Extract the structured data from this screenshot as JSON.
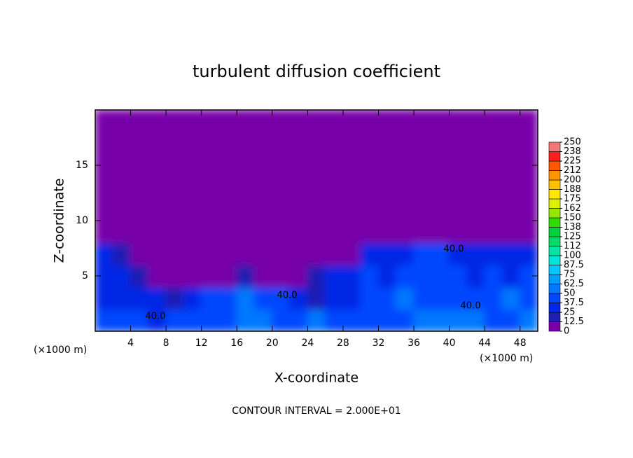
{
  "chart_data": {
    "type": "contour",
    "title": "turbulent diffusion coefficient",
    "x_label": "X-coordinate",
    "y_label": "Z-coordinate",
    "x_unit": "(×1000 m)",
    "footer": "CONTOUR INTERVAL = 2.000E+01",
    "annotations": [
      "40.0",
      "40.0",
      "40.0",
      "40.0"
    ],
    "xlim": [
      0,
      50
    ],
    "ylim": [
      0,
      20
    ],
    "xticks": [
      4,
      8,
      12,
      16,
      20,
      24,
      28,
      32,
      36,
      40,
      44,
      48
    ],
    "yticks": [
      5,
      10,
      15
    ],
    "levels": [
      0,
      12.5,
      25,
      37.5,
      50,
      62.5,
      75,
      87.5,
      100,
      {
        "value": 112.5,
        "label": "112"
      },
      125,
      {
        "value": 137.5,
        "label": "138"
      },
      150,
      {
        "value": 162.5,
        "label": "162"
      },
      175,
      {
        "value": 187.5,
        "label": "188"
      },
      200,
      {
        "value": 212.5,
        "label": "212"
      },
      225,
      {
        "value": 237.5,
        "label": "238"
      },
      250
    ],
    "colors": [
      "#7800a8",
      "#1e1eb4",
      "#0028e6",
      "#0046ff",
      "#0078ff",
      "#00a0ff",
      "#00c8ff",
      "#00e6dc",
      "#00e6a0",
      "#00dc64",
      "#00d23c",
      "#32dc00",
      "#96e600",
      "#dcf000",
      "#ffe600",
      "#ffbe00",
      "#ff9600",
      "#ff5a00",
      "#ff1e1e",
      "#f07878"
    ],
    "z": [
      [
        45,
        40,
        40,
        35,
        40,
        45,
        45,
        40,
        50,
        55,
        45,
        40,
        50,
        45,
        40,
        45,
        40,
        45,
        50,
        55,
        50,
        50,
        45,
        45,
        50
      ],
      [
        35,
        30,
        25,
        30,
        20,
        30,
        40,
        45,
        50,
        45,
        40,
        30,
        20,
        30,
        35,
        40,
        45,
        50,
        45,
        40,
        45,
        40,
        45,
        50,
        45
      ],
      [
        30,
        25,
        20,
        10,
        5,
        5,
        5,
        10,
        15,
        5,
        5,
        5,
        20,
        30,
        35,
        40,
        35,
        40,
        45,
        45,
        40,
        35,
        40,
        35,
        40
      ],
      [
        25,
        20,
        10,
        5,
        0,
        0,
        0,
        0,
        0,
        0,
        0,
        0,
        0,
        0,
        10,
        25,
        30,
        35,
        40,
        40,
        35,
        35,
        30,
        35,
        35
      ],
      [
        0,
        0,
        0,
        0,
        0,
        0,
        0,
        0,
        0,
        0,
        0,
        0,
        0,
        0,
        0,
        0,
        0,
        0,
        10,
        5,
        0,
        0,
        0,
        0,
        0
      ],
      [
        0,
        0,
        0,
        0,
        0,
        0,
        0,
        0,
        0,
        0,
        0,
        0,
        0,
        0,
        0,
        0,
        0,
        0,
        0,
        0,
        0,
        0,
        0,
        0,
        0
      ],
      [
        0,
        0,
        0,
        0,
        0,
        0,
        0,
        0,
        0,
        0,
        0,
        0,
        0,
        0,
        0,
        0,
        0,
        0,
        0,
        0,
        0,
        0,
        0,
        0,
        0
      ],
      [
        0,
        0,
        0,
        0,
        0,
        0,
        0,
        0,
        0,
        0,
        0,
        0,
        0,
        0,
        0,
        0,
        0,
        0,
        0,
        0,
        0,
        0,
        0,
        0,
        0
      ],
      [
        0,
        0,
        0,
        0,
        0,
        0,
        0,
        0,
        0,
        0,
        0,
        0,
        0,
        0,
        0,
        0,
        0,
        0,
        0,
        0,
        0,
        0,
        0,
        0,
        0
      ],
      [
        0,
        0,
        0,
        0,
        0,
        0,
        0,
        0,
        0,
        0,
        0,
        0,
        0,
        0,
        0,
        0,
        0,
        0,
        0,
        0,
        0,
        0,
        0,
        0,
        0
      ]
    ]
  }
}
